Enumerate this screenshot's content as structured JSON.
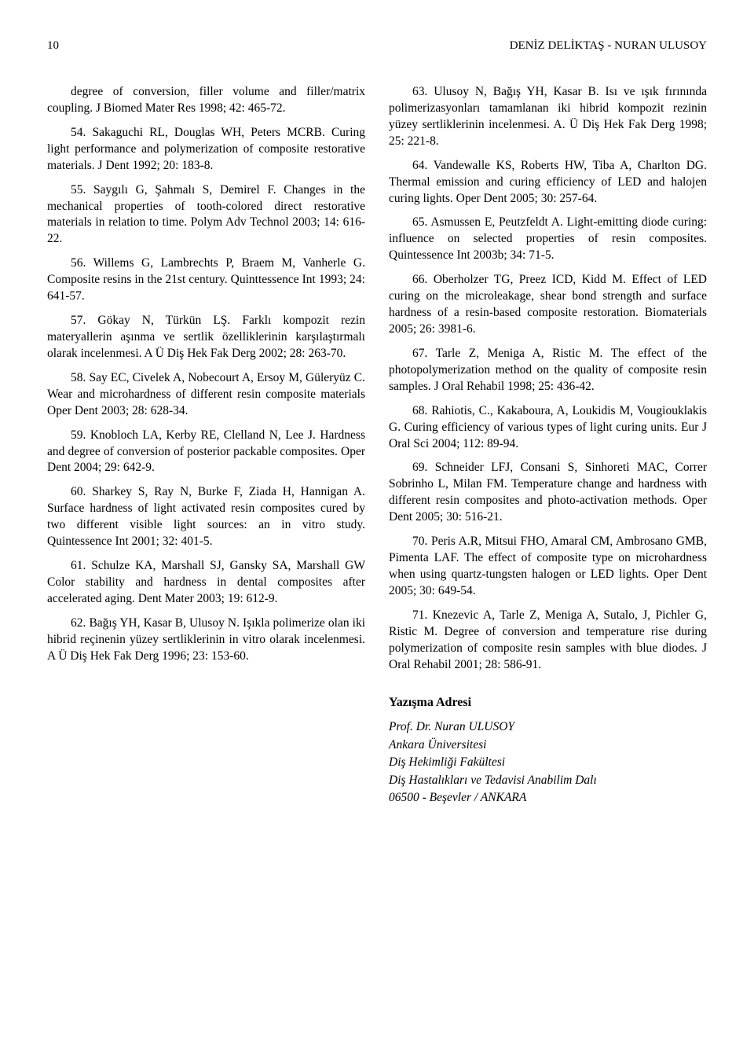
{
  "header": {
    "page_number": "10",
    "authors": "DENİZ DELİKTAŞ - NURAN ULUSOY"
  },
  "left": [
    "degree of conversion, filler volume and filler/matrix coupling. J Biomed Mater Res  1998; 42: 465-72.",
    "54. Sakaguchi RL, Douglas WH, Peters MCRB. Curing light performance and polymerization of composite restorative materials. J Dent  1992; 20: 183-8.",
    "55. Saygılı G, Şahmalı S, Demirel F. Changes in the mechanical properties of tooth-colored direct restorative materials in relation to time. Polym Adv Technol  2003; 14: 616-22.",
    "56. Willems G, Lambrechts P, Braem M, Vanherle G. Composite resins in the 21st century. Quinttessence Int  1993; 24: 641-57.",
    "57. Gökay N, Türkün LŞ. Farklı kompozit rezin materyallerin aşınma ve sertlik özelliklerinin karşılaştırmalı olarak incelenmesi. A Ü Diş Hek Fak Derg 2002; 28: 263-70.",
    "58. Say EC, Civelek A, Nobecourt A, Ersoy M, Güleryüz C. Wear and microhardness of different resin composite materials Oper Dent  2003; 28: 628-34.",
    "59. Knobloch LA, Kerby RE, Clelland N, Lee J. Hardness and degree of conversion of posterior packable composites. Oper Dent  2004; 29: 642-9.",
    "60. Sharkey S, Ray N, Burke F, Ziada H, Hannigan A. Surface hardness of light activated resin composites cured by two different visible light sources: an in vitro study. Quintessence Int  2001; 32: 401-5.",
    "61. Schulze KA, Marshall SJ, Gansky SA, Marshall GW Color stability and hardness in dental composites after accelerated aging. Dent  Mater 2003; 19: 612-9.",
    "62. Bağış YH, Kasar B, Ulusoy N. Işıkla polimerize olan iki hibrid reçinenin yüzey sertliklerinin in vitro olarak incelenmesi. A Ü Diş Hek Fak Derg 1996; 23: 153-60."
  ],
  "right": [
    "63. Ulusoy N, Bağış YH, Kasar B. Isı ve ışık fırınında polimerizasyonları tamamlanan iki hibrid kompozit rezinin yüzey sertliklerinin incelenmesi. A. Ü Diş Hek Fak Derg  1998; 25: 221-8.",
    "64. Vandewalle KS, Roberts HW, Tiba A, Charlton DG. Thermal emission and curing efficiency of LED and halojen curing lights. Oper Dent 2005; 30: 257-64.",
    "65. Asmussen E, Peutzfeldt A. Light-emitting diode curing: influence on selected properties of resin composites. Quintessence Int  2003b; 34: 71-5.",
    "66. Oberholzer TG, Preez ICD, Kidd M. Effect of LED curing on the microleakage, shear bond strength and surface hardness of a resin-based composite restoration. Biomaterials 2005; 26: 3981-6.",
    "67. Tarle Z, Meniga A, Ristic M. The effect of the photopolymerization method on the quality of composite resin samples. J Oral Rehabil  1998; 25: 436-42.",
    "68. Rahiotis, C., Kakaboura, A, Loukidis M, Vougiouklakis G. Curing efficiency of various types of light curing units. Eur J Oral Sci  2004; 112: 89-94.",
    "69. Schneider LFJ, Consani S, Sinhoreti MAC, Correr Sobrinho L, Milan FM. Temperature change and hardness with different resin composites and photo-activation methods. Oper Dent  2005; 30: 516-21.",
    "70. Peris A.R, Mitsui FHO, Amaral CM, Ambrosano GMB, Pimenta LAF. The effect of composite type on microhardness when using quartz-tungsten halogen or LED lights. Oper Dent  2005; 30: 649-54.",
    "71. Knezevic A, Tarle Z, Meniga A, Sutalo, J, Pichler G, Ristic M. Degree of conversion and temperature rise during polymerization of composite resin samples with blue diodes. J Oral Rehabil  2001; 28: 586-91."
  ],
  "address": {
    "heading": "Yazışma Adresi",
    "lines": [
      "Prof. Dr. Nuran ULUSOY",
      "Ankara Üniversitesi",
      "Diş Hekimliği Fakültesi",
      "Diş Hastalıkları ve Tedavisi Anabilim Dalı",
      "06500 - Beşevler / ANKARA"
    ]
  }
}
